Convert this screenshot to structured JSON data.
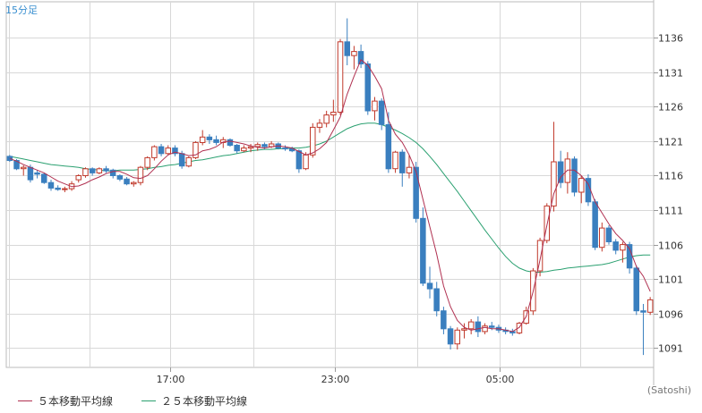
{
  "chart_data": {
    "type": "candlestick",
    "interval_label": "15分足",
    "credit": "(Satoshi)",
    "x_ticks": [
      "17:00",
      "23:00",
      "05:00"
    ],
    "y_ticks": [
      1091,
      1096,
      1101,
      1106,
      1111,
      1116,
      1121,
      1126,
      1131,
      1136
    ],
    "ylim": [
      1088.2,
      1141.2
    ],
    "grid": true,
    "colors": {
      "up": "#c0392b",
      "down": "#3a7fbf",
      "ma5": "#b03050",
      "ma25": "#2aa070",
      "grid": "#d8d8d8"
    },
    "legend": [
      {
        "label": "５本移動平均線",
        "color": "#b03050"
      },
      {
        "label": "２５本移動平均線",
        "color": "#2aa070"
      }
    ],
    "candles": [
      [
        1118.8,
        1119.0,
        1118.0,
        1118.2
      ],
      [
        1118.2,
        1118.4,
        1116.8,
        1117.0
      ],
      [
        1117.0,
        1117.5,
        1116.0,
        1117.2
      ],
      [
        1117.2,
        1117.6,
        1115.0,
        1115.4
      ],
      [
        1116.4,
        1116.8,
        1115.6,
        1116.2
      ],
      [
        1116.2,
        1116.4,
        1114.8,
        1115.0
      ],
      [
        1115.0,
        1115.4,
        1113.8,
        1114.2
      ],
      [
        1114.2,
        1114.6,
        1113.8,
        1114.0
      ],
      [
        1114.0,
        1114.4,
        1113.6,
        1114.1
      ],
      [
        1114.1,
        1115.2,
        1113.8,
        1114.8
      ],
      [
        1115.4,
        1116.2,
        1115.0,
        1116.0
      ],
      [
        1116.0,
        1117.2,
        1115.7,
        1117.0
      ],
      [
        1117.0,
        1117.2,
        1116.0,
        1116.4
      ],
      [
        1116.4,
        1117.2,
        1116.2,
        1117.0
      ],
      [
        1117.0,
        1117.4,
        1116.4,
        1116.7
      ],
      [
        1116.8,
        1117.0,
        1115.6,
        1116.0
      ],
      [
        1116.0,
        1116.2,
        1115.2,
        1115.5
      ],
      [
        1115.5,
        1115.8,
        1114.6,
        1114.8
      ],
      [
        1114.8,
        1115.2,
        1114.4,
        1115.0
      ],
      [
        1115.0,
        1117.4,
        1114.6,
        1117.2
      ],
      [
        1117.2,
        1118.8,
        1116.8,
        1118.6
      ],
      [
        1118.6,
        1120.4,
        1118.2,
        1120.2
      ],
      [
        1120.2,
        1120.6,
        1118.8,
        1119.2
      ],
      [
        1119.2,
        1120.4,
        1119.0,
        1120.0
      ],
      [
        1120.0,
        1120.4,
        1118.8,
        1119.2
      ],
      [
        1119.2,
        1119.6,
        1117.0,
        1117.4
      ],
      [
        1117.4,
        1118.8,
        1117.2,
        1118.6
      ],
      [
        1118.6,
        1121.0,
        1118.4,
        1120.8
      ],
      [
        1120.8,
        1122.6,
        1120.4,
        1121.6
      ],
      [
        1121.6,
        1122.0,
        1120.6,
        1121.2
      ],
      [
        1121.2,
        1121.8,
        1120.4,
        1120.8
      ],
      [
        1120.8,
        1121.6,
        1120.0,
        1121.2
      ],
      [
        1121.2,
        1121.4,
        1120.2,
        1120.4
      ],
      [
        1120.4,
        1120.6,
        1119.2,
        1119.6
      ],
      [
        1119.6,
        1120.4,
        1119.4,
        1120.0
      ],
      [
        1120.0,
        1120.6,
        1119.4,
        1120.2
      ],
      [
        1120.2,
        1120.8,
        1119.6,
        1120.5
      ],
      [
        1120.5,
        1120.8,
        1119.8,
        1120.2
      ],
      [
        1120.2,
        1121.0,
        1120.0,
        1120.6
      ],
      [
        1120.6,
        1120.8,
        1119.8,
        1120.0
      ],
      [
        1120.0,
        1120.4,
        1119.6,
        1119.9
      ],
      [
        1119.9,
        1120.2,
        1119.4,
        1119.6
      ],
      [
        1119.6,
        1119.8,
        1116.4,
        1117.0
      ],
      [
        1117.0,
        1119.4,
        1116.8,
        1119.0
      ],
      [
        1119.0,
        1123.6,
        1118.6,
        1123.0
      ],
      [
        1123.0,
        1124.2,
        1122.2,
        1123.6
      ],
      [
        1123.6,
        1125.4,
        1123.0,
        1124.8
      ],
      [
        1124.8,
        1127.0,
        1123.8,
        1125.2
      ],
      [
        1125.2,
        1135.8,
        1124.8,
        1135.4
      ],
      [
        1135.4,
        1138.8,
        1132.0,
        1133.4
      ],
      [
        1133.4,
        1134.8,
        1131.4,
        1134.0
      ],
      [
        1134.0,
        1135.0,
        1131.6,
        1132.2
      ],
      [
        1132.2,
        1132.6,
        1124.8,
        1125.4
      ],
      [
        1125.4,
        1127.4,
        1124.0,
        1126.8
      ],
      [
        1126.8,
        1127.2,
        1122.6,
        1123.4
      ],
      [
        1123.4,
        1125.2,
        1116.4,
        1117.0
      ],
      [
        1117.0,
        1119.6,
        1116.4,
        1119.4
      ],
      [
        1119.4,
        1119.8,
        1114.4,
        1116.4
      ],
      [
        1116.4,
        1119.0,
        1115.6,
        1117.2
      ],
      [
        1117.2,
        1118.0,
        1109.2,
        1109.8
      ],
      [
        1109.8,
        1111.4,
        1100.0,
        1100.4
      ],
      [
        1100.4,
        1102.8,
        1098.2,
        1099.6
      ],
      [
        1099.6,
        1100.6,
        1095.6,
        1096.4
      ],
      [
        1096.4,
        1097.0,
        1093.0,
        1093.8
      ],
      [
        1093.8,
        1094.2,
        1090.8,
        1091.6
      ],
      [
        1091.6,
        1094.0,
        1090.8,
        1093.6
      ],
      [
        1093.6,
        1094.6,
        1092.4,
        1093.8
      ],
      [
        1093.8,
        1095.2,
        1093.0,
        1094.8
      ],
      [
        1094.8,
        1095.6,
        1092.6,
        1093.4
      ],
      [
        1093.4,
        1094.6,
        1093.0,
        1094.2
      ],
      [
        1094.2,
        1094.8,
        1093.6,
        1094.0
      ],
      [
        1094.0,
        1094.4,
        1093.2,
        1093.6
      ],
      [
        1093.6,
        1094.0,
        1093.0,
        1093.4
      ],
      [
        1093.4,
        1093.8,
        1092.8,
        1093.2
      ],
      [
        1093.2,
        1094.8,
        1093.0,
        1094.6
      ],
      [
        1094.6,
        1097.0,
        1094.4,
        1096.4
      ],
      [
        1096.4,
        1102.6,
        1095.8,
        1102.2
      ],
      [
        1102.2,
        1107.0,
        1101.4,
        1106.6
      ],
      [
        1106.6,
        1112.0,
        1106.2,
        1111.6
      ],
      [
        1111.6,
        1123.8,
        1110.8,
        1118.0
      ],
      [
        1118.0,
        1119.6,
        1114.2,
        1115.0
      ],
      [
        1115.0,
        1119.4,
        1113.4,
        1118.4
      ],
      [
        1118.4,
        1118.8,
        1113.0,
        1113.6
      ],
      [
        1113.6,
        1116.0,
        1112.0,
        1115.6
      ],
      [
        1115.6,
        1116.2,
        1111.6,
        1112.2
      ],
      [
        1112.2,
        1112.6,
        1105.2,
        1105.6
      ],
      [
        1105.6,
        1109.2,
        1105.0,
        1108.4
      ],
      [
        1108.4,
        1108.8,
        1106.0,
        1106.4
      ],
      [
        1106.4,
        1106.8,
        1104.6,
        1105.2
      ],
      [
        1105.2,
        1106.4,
        1103.4,
        1106.0
      ],
      [
        1106.0,
        1106.4,
        1101.8,
        1102.6
      ],
      [
        1102.6,
        1103.0,
        1095.8,
        1096.4
      ],
      [
        1096.4,
        1097.4,
        1090.0,
        1096.2
      ],
      [
        1096.2,
        1098.4,
        1095.8,
        1098.0
      ]
    ],
    "ma5": [
      1118.5,
      1118.1,
      1117.6,
      1117.2,
      1116.8,
      1116.4,
      1115.8,
      1115.2,
      1114.8,
      1114.4,
      1114.5,
      1114.9,
      1115.4,
      1115.8,
      1116.3,
      1116.6,
      1116.6,
      1116.2,
      1115.7,
      1115.6,
      1116.0,
      1117.0,
      1118.1,
      1119.0,
      1119.4,
      1119.2,
      1118.9,
      1119.0,
      1119.6,
      1119.8,
      1120.2,
      1120.9,
      1121.0,
      1120.8,
      1120.6,
      1120.3,
      1120.1,
      1120.0,
      1120.2,
      1120.3,
      1120.2,
      1120.0,
      1119.5,
      1119.0,
      1119.3,
      1119.9,
      1120.8,
      1122.6,
      1124.5,
      1127.8,
      1130.4,
      1132.8,
      1132.0,
      1130.4,
      1128.6,
      1124.0,
      1122.0,
      1120.8,
      1119.0,
      1116.6,
      1112.6,
      1108.6,
      1104.6,
      1100.0,
      1097.0,
      1095.0,
      1094.0,
      1093.6,
      1093.8,
      1094.0,
      1093.8,
      1093.8,
      1093.6,
      1093.4,
      1094.0,
      1095.6,
      1099.2,
      1103.8,
      1108.8,
      1113.4,
      1115.8,
      1116.8,
      1116.8,
      1116.0,
      1114.8,
      1112.2,
      1110.6,
      1109.0,
      1107.6,
      1106.6,
      1105.4,
      1102.8,
      1101.4,
      1099.2
    ],
    "ma25": [
      1118.8,
      1118.6,
      1118.4,
      1118.2,
      1118.0,
      1117.8,
      1117.6,
      1117.5,
      1117.4,
      1117.3,
      1117.2,
      1117.0,
      1116.9,
      1116.8,
      1116.7,
      1116.7,
      1116.8,
      1116.8,
      1116.8,
      1116.9,
      1117.0,
      1117.2,
      1117.3,
      1117.5,
      1117.6,
      1117.8,
      1118.0,
      1118.2,
      1118.3,
      1118.5,
      1118.7,
      1118.9,
      1119.0,
      1119.2,
      1119.4,
      1119.6,
      1119.7,
      1119.8,
      1119.8,
      1119.9,
      1119.9,
      1120.0,
      1120.0,
      1120.1,
      1120.3,
      1120.6,
      1121.0,
      1121.6,
      1122.2,
      1122.8,
      1123.2,
      1123.5,
      1123.6,
      1123.6,
      1123.4,
      1123.0,
      1122.6,
      1122.1,
      1121.5,
      1120.8,
      1119.9,
      1118.8,
      1117.6,
      1116.3,
      1115.0,
      1113.7,
      1112.3,
      1110.9,
      1109.5,
      1108.1,
      1106.8,
      1105.5,
      1104.3,
      1103.3,
      1102.6,
      1102.2,
      1102.0,
      1102.0,
      1102.1,
      1102.3,
      1102.4,
      1102.6,
      1102.7,
      1102.8,
      1102.9,
      1103.0,
      1103.1,
      1103.3,
      1103.6,
      1103.9,
      1104.2,
      1104.4,
      1104.5,
      1104.5
    ]
  }
}
